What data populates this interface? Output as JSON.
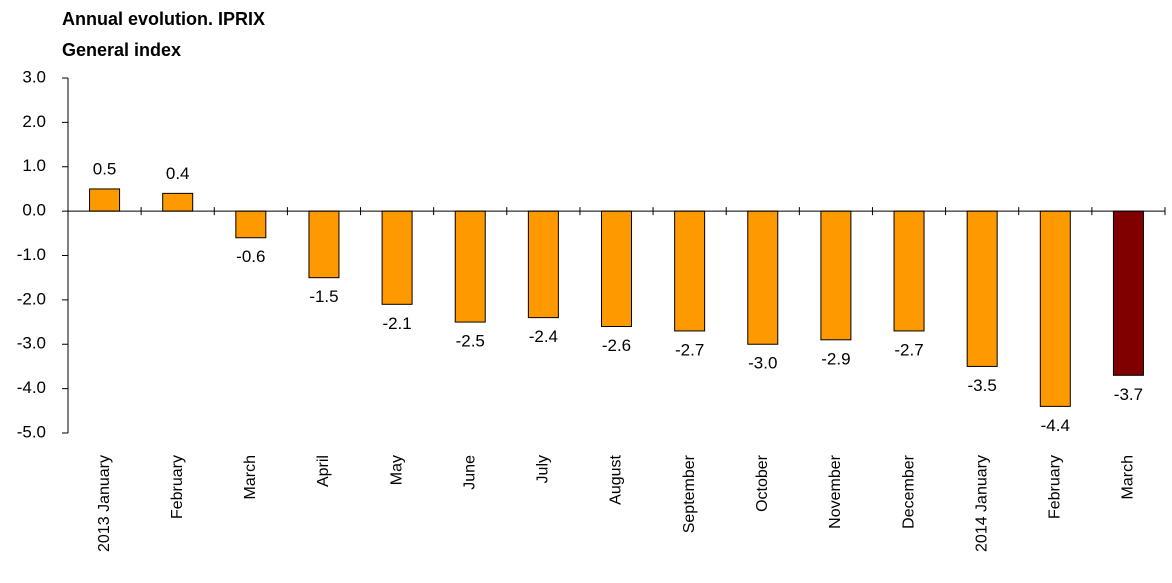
{
  "chart_data": {
    "type": "bar",
    "title": [
      "Annual evolution. IPRIX",
      "General index"
    ],
    "categories": [
      "2013 January",
      "February",
      "March",
      "April",
      "May",
      "June",
      "July",
      "August",
      "September",
      "October",
      "November",
      "December",
      "2014 January",
      "February",
      "March"
    ],
    "values": [
      0.5,
      0.4,
      -0.6,
      -1.5,
      -2.1,
      -2.5,
      -2.4,
      -2.6,
      -2.7,
      -3.0,
      -2.9,
      -2.7,
      -3.5,
      -4.4,
      -3.7
    ],
    "value_labels": [
      "0.5",
      "0.4",
      "-0.6",
      "-1.5",
      "-2.1",
      "-2.5",
      "-2.4",
      "-2.6",
      "-2.7",
      "-3.0",
      "-2.9",
      "-2.7",
      "-3.5",
      "-4.4",
      "-3.7"
    ],
    "colors": [
      "#FF9900",
      "#FF9900",
      "#FF9900",
      "#FF9900",
      "#FF9900",
      "#FF9900",
      "#FF9900",
      "#FF9900",
      "#FF9900",
      "#FF9900",
      "#FF9900",
      "#FF9900",
      "#FF9900",
      "#FF9900",
      "#800000"
    ],
    "ylim": [
      -5,
      3
    ],
    "yticks": [
      {
        "value": 3,
        "label": "3.0"
      },
      {
        "value": 2,
        "label": "2.0"
      },
      {
        "value": 1,
        "label": "1.0"
      },
      {
        "value": 0,
        "label": "0.0"
      },
      {
        "value": -1,
        "label": "-1.0"
      },
      {
        "value": -2,
        "label": "-2.0"
      },
      {
        "value": -3,
        "label": "-3.0"
      },
      {
        "value": -4,
        "label": "-4.0"
      },
      {
        "value": -5,
        "label": "-5.0"
      }
    ],
    "grid": false
  }
}
